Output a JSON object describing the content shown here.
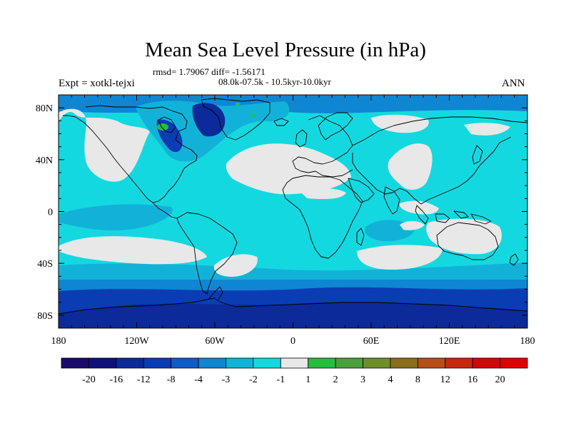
{
  "chart_data": {
    "type": "heatmap",
    "title": "Mean Sea Level Pressure (in hPa)",
    "stats_line1": "rmsd= 1.79067 diff= -1.56171",
    "stats_line2": "08.0k-07.5k - 10.5kyr-10.0kyr",
    "left_label": "Expt = xotkl-tejxi",
    "right_label": "ANN",
    "x_axis": {
      "range": [
        -180,
        180
      ],
      "ticks": [
        -180,
        -120,
        -60,
        0,
        60,
        120,
        180
      ],
      "tick_labels": [
        "180",
        "120W",
        "60W",
        "0",
        "60E",
        "120E",
        "180"
      ]
    },
    "y_axis": {
      "range": [
        -90,
        90
      ],
      "ticks": [
        80,
        40,
        0,
        -40,
        -80
      ],
      "tick_labels": [
        "80N",
        "40N",
        "0",
        "40S",
        "80S"
      ]
    },
    "colorbar": {
      "labels": [
        "-20",
        "-16",
        "-12",
        "-8",
        "-4",
        "-3",
        "-2",
        "-1",
        "1",
        "2",
        "3",
        "4",
        "8",
        "12",
        "16",
        "20"
      ],
      "colors": [
        "#1a0a6e",
        "#10107e",
        "#0c2a9a",
        "#0a3cb4",
        "#0d5cc8",
        "#0f86d2",
        "#12b2d8",
        "#14d8e0",
        "#e8e8e8",
        "#26be3c",
        "#4aa03a",
        "#6e8e2a",
        "#8c6e1a",
        "#b84e16",
        "#c8280c",
        "#d00808",
        "#e00000"
      ]
    },
    "field_colors": {
      "ocean": "#14d8e0",
      "mid": "#12b2d8",
      "lower": "#0f86d2",
      "deep": "#0a3cb4",
      "near_zero": "#e8e8e8",
      "positive": "#26be3c"
    }
  }
}
